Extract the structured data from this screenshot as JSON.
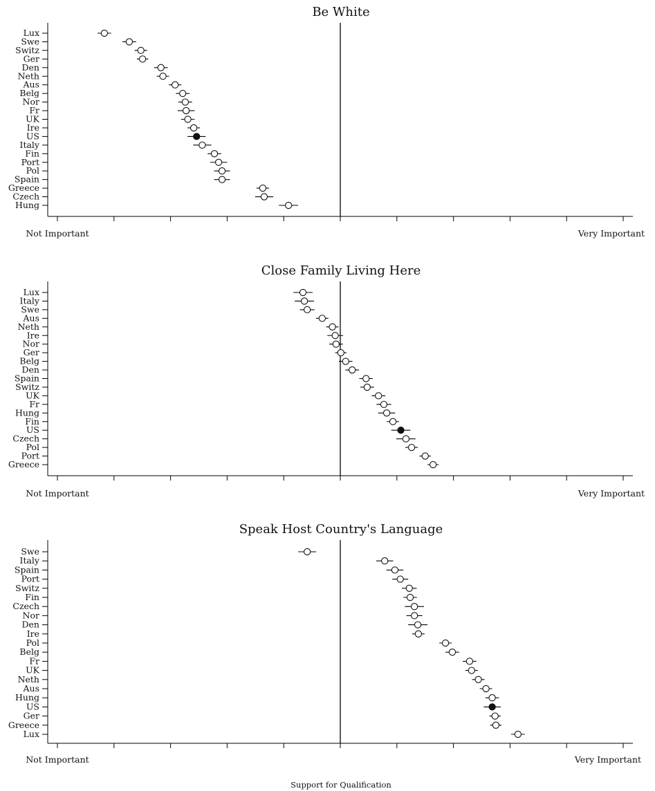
{
  "xlabel": "Support for Qualification",
  "chart_data": [
    {
      "type": "scatter",
      "title": "Be White",
      "x_left_label": "Not Important",
      "x_right_label": "Very Important",
      "xlim": [
        -1,
        1
      ],
      "highlight": "US",
      "points": [
        {
          "label": "Lux",
          "est": -0.834,
          "lo": -0.858,
          "hi": -0.81
        },
        {
          "label": "Swe",
          "est": -0.746,
          "lo": -0.77,
          "hi": -0.722
        },
        {
          "label": "Switz",
          "est": -0.705,
          "lo": -0.727,
          "hi": -0.683
        },
        {
          "label": "Ger",
          "est": -0.699,
          "lo": -0.719,
          "hi": -0.679
        },
        {
          "label": "Den",
          "est": -0.634,
          "lo": -0.658,
          "hi": -0.61
        },
        {
          "label": "Neth",
          "est": -0.627,
          "lo": -0.649,
          "hi": -0.605
        },
        {
          "label": "Aus",
          "est": -0.584,
          "lo": -0.606,
          "hi": -0.562
        },
        {
          "label": "Belg",
          "est": -0.557,
          "lo": -0.581,
          "hi": -0.533
        },
        {
          "label": "Nor",
          "est": -0.548,
          "lo": -0.572,
          "hi": -0.524
        },
        {
          "label": "Fr",
          "est": -0.545,
          "lo": -0.575,
          "hi": -0.515
        },
        {
          "label": "UK",
          "est": -0.539,
          "lo": -0.563,
          "hi": -0.515
        },
        {
          "label": "Ire",
          "est": -0.518,
          "lo": -0.54,
          "hi": -0.496
        },
        {
          "label": "US",
          "est": -0.508,
          "lo": -0.54,
          "hi": -0.476
        },
        {
          "label": "Italy",
          "est": -0.488,
          "lo": -0.52,
          "hi": -0.456
        },
        {
          "label": "Fin",
          "est": -0.445,
          "lo": -0.469,
          "hi": -0.421
        },
        {
          "label": "Port",
          "est": -0.43,
          "lo": -0.46,
          "hi": -0.4
        },
        {
          "label": "Pol",
          "est": -0.418,
          "lo": -0.446,
          "hi": -0.39
        },
        {
          "label": "Spain",
          "est": -0.418,
          "lo": -0.446,
          "hi": -0.39
        },
        {
          "label": "Greece",
          "est": -0.274,
          "lo": -0.296,
          "hi": -0.252
        },
        {
          "label": "Czech",
          "est": -0.269,
          "lo": -0.301,
          "hi": -0.237
        },
        {
          "label": "Hung",
          "est": -0.183,
          "lo": -0.217,
          "hi": -0.149
        }
      ]
    },
    {
      "type": "scatter",
      "title": "Close Family Living Here",
      "x_left_label": "Not Important",
      "x_right_label": "Very Important",
      "xlim": [
        -1,
        1
      ],
      "highlight": "US",
      "points": [
        {
          "label": "Lux",
          "est": -0.132,
          "lo": -0.166,
          "hi": -0.098
        },
        {
          "label": "Italy",
          "est": -0.127,
          "lo": -0.161,
          "hi": -0.093
        },
        {
          "label": "Swe",
          "est": -0.117,
          "lo": -0.143,
          "hi": -0.091
        },
        {
          "label": "Aus",
          "est": -0.064,
          "lo": -0.086,
          "hi": -0.042
        },
        {
          "label": "Neth",
          "est": -0.028,
          "lo": -0.05,
          "hi": -0.006
        },
        {
          "label": "Ire",
          "est": -0.018,
          "lo": -0.046,
          "hi": 0.01
        },
        {
          "label": "Nor",
          "est": -0.015,
          "lo": -0.039,
          "hi": 0.009
        },
        {
          "label": "Ger",
          "est": 0.002,
          "lo": -0.018,
          "hi": 0.022
        },
        {
          "label": "Belg",
          "est": 0.019,
          "lo": -0.005,
          "hi": 0.043
        },
        {
          "label": "Den",
          "est": 0.042,
          "lo": 0.018,
          "hi": 0.066
        },
        {
          "label": "Spain",
          "est": 0.091,
          "lo": 0.067,
          "hi": 0.115
        },
        {
          "label": "Switz",
          "est": 0.095,
          "lo": 0.071,
          "hi": 0.119
        },
        {
          "label": "UK",
          "est": 0.135,
          "lo": 0.111,
          "hi": 0.159
        },
        {
          "label": "Fr",
          "est": 0.154,
          "lo": 0.128,
          "hi": 0.18
        },
        {
          "label": "Hung",
          "est": 0.164,
          "lo": 0.134,
          "hi": 0.194
        },
        {
          "label": "Fin",
          "est": 0.186,
          "lo": 0.164,
          "hi": 0.208
        },
        {
          "label": "US",
          "est": 0.214,
          "lo": 0.18,
          "hi": 0.248
        },
        {
          "label": "Czech",
          "est": 0.232,
          "lo": 0.198,
          "hi": 0.266
        },
        {
          "label": "Pol",
          "est": 0.252,
          "lo": 0.23,
          "hi": 0.274
        },
        {
          "label": "Port",
          "est": 0.3,
          "lo": 0.28,
          "hi": 0.32
        },
        {
          "label": "Greece",
          "est": 0.328,
          "lo": 0.308,
          "hi": 0.348
        }
      ]
    },
    {
      "type": "scatter",
      "title": "Speak Host Country's Language",
      "x_left_label": "Not Important",
      "x_right_label": "Very Important",
      "xlim": [
        -1,
        1
      ],
      "highlight": "US",
      "points": [
        {
          "label": "Swe",
          "est": -0.117,
          "lo": -0.149,
          "hi": -0.085
        },
        {
          "label": "Italy",
          "est": 0.157,
          "lo": 0.127,
          "hi": 0.187
        },
        {
          "label": "Spain",
          "est": 0.193,
          "lo": 0.163,
          "hi": 0.223
        },
        {
          "label": "Port",
          "est": 0.212,
          "lo": 0.184,
          "hi": 0.24
        },
        {
          "label": "Switz",
          "est": 0.244,
          "lo": 0.218,
          "hi": 0.27
        },
        {
          "label": "Fin",
          "est": 0.247,
          "lo": 0.223,
          "hi": 0.271
        },
        {
          "label": "Czech",
          "est": 0.262,
          "lo": 0.228,
          "hi": 0.296
        },
        {
          "label": "Nor",
          "est": 0.262,
          "lo": 0.234,
          "hi": 0.29
        },
        {
          "label": "Den",
          "est": 0.274,
          "lo": 0.24,
          "hi": 0.308
        },
        {
          "label": "Ire",
          "est": 0.276,
          "lo": 0.254,
          "hi": 0.298
        },
        {
          "label": "Pol",
          "est": 0.372,
          "lo": 0.35,
          "hi": 0.394
        },
        {
          "label": "Belg",
          "est": 0.396,
          "lo": 0.372,
          "hi": 0.42
        },
        {
          "label": "Fr",
          "est": 0.457,
          "lo": 0.433,
          "hi": 0.481
        },
        {
          "label": "UK",
          "est": 0.464,
          "lo": 0.442,
          "hi": 0.486
        },
        {
          "label": "Neth",
          "est": 0.488,
          "lo": 0.466,
          "hi": 0.51
        },
        {
          "label": "Aus",
          "est": 0.515,
          "lo": 0.493,
          "hi": 0.537
        },
        {
          "label": "Hung",
          "est": 0.537,
          "lo": 0.513,
          "hi": 0.561
        },
        {
          "label": "US",
          "est": 0.537,
          "lo": 0.507,
          "hi": 0.567
        },
        {
          "label": "Ger",
          "est": 0.547,
          "lo": 0.527,
          "hi": 0.567
        },
        {
          "label": "Greece",
          "est": 0.55,
          "lo": 0.53,
          "hi": 0.57
        },
        {
          "label": "Lux",
          "est": 0.628,
          "lo": 0.604,
          "hi": 0.652
        }
      ]
    }
  ]
}
